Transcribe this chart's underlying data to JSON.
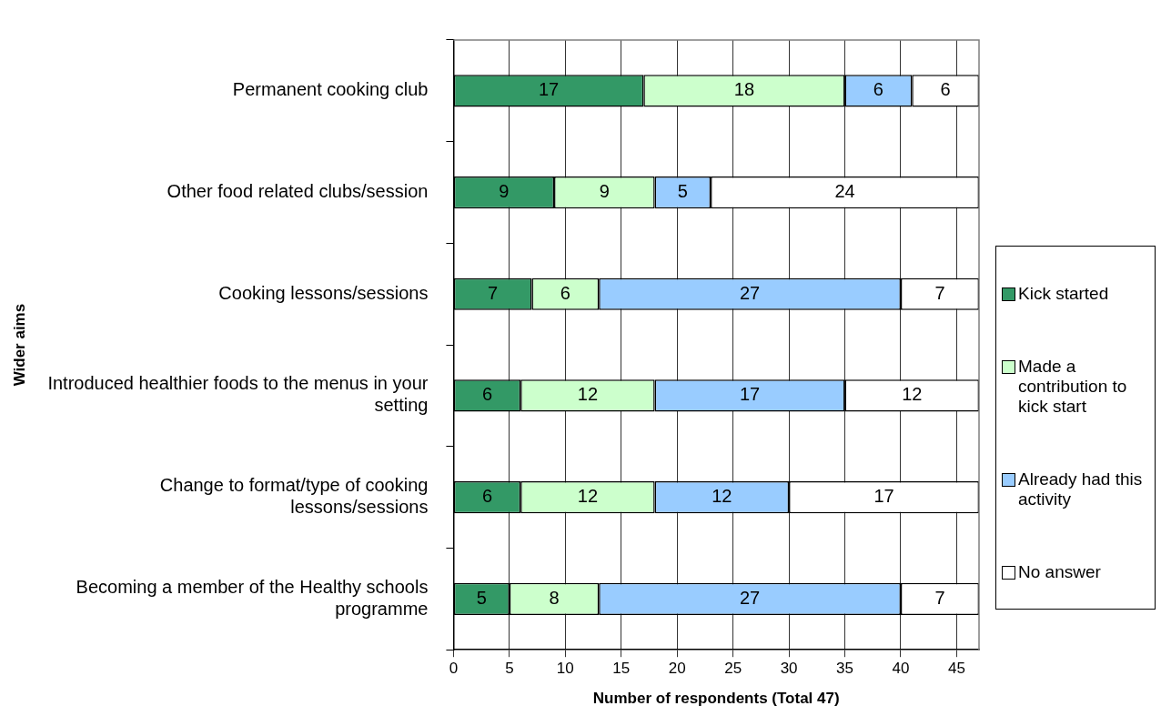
{
  "chart_data": {
    "type": "bar",
    "orientation": "horizontal",
    "stacked": true,
    "categories": [
      "Permanent cooking club",
      "Other food related clubs/session",
      "Cooking lessons/sessions",
      "Introduced healthier foods to the menus in your setting",
      "Change to format/type of cooking lessons/sessions",
      "Becoming a member of the Healthy schools programme"
    ],
    "series": [
      {
        "name": "Kick started",
        "color": "#339966",
        "values": [
          17,
          9,
          7,
          6,
          6,
          5
        ]
      },
      {
        "name": "Made a contribution to kick start",
        "color": "#ccffcc",
        "values": [
          18,
          9,
          6,
          12,
          12,
          8
        ]
      },
      {
        "name": "Already had this activity",
        "color": "#99ccff",
        "values": [
          6,
          5,
          27,
          17,
          12,
          27
        ]
      },
      {
        "name": "No answer",
        "color": "#ffffff",
        "values": [
          6,
          24,
          7,
          12,
          17,
          7
        ]
      }
    ],
    "xlim": [
      0,
      47
    ],
    "xticks": [
      0,
      5,
      10,
      15,
      20,
      25,
      30,
      35,
      40,
      45
    ],
    "xlabel": "Number of respondents (Total 47)",
    "ylabel": "Wider aims",
    "grid": "x",
    "legend": "right",
    "data_labels": true
  }
}
